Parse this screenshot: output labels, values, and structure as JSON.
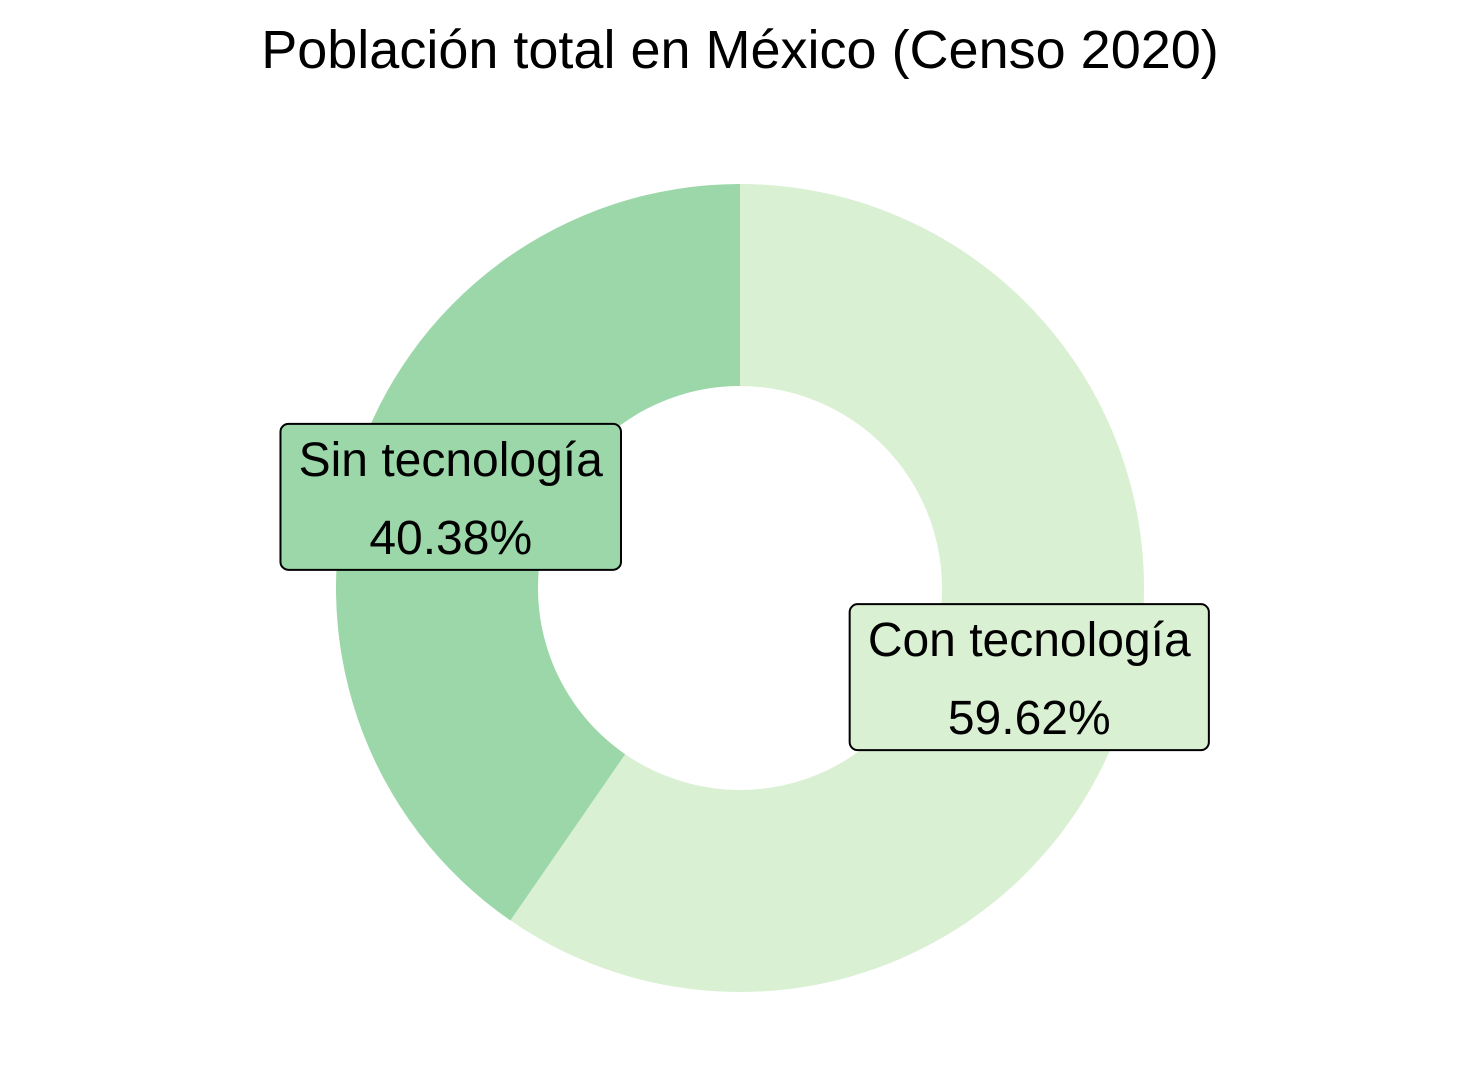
{
  "chart_data": {
    "type": "pie",
    "variant": "donut",
    "title": "Población total en México (Censo 2020)",
    "slices": [
      {
        "label": "Con tecnología",
        "value": 59.62,
        "value_label": "59.62%",
        "color": "#d9f0d3"
      },
      {
        "label": "Sin tecnología",
        "value": 40.38,
        "value_label": "40.38%",
        "color": "#9bd7a8"
      }
    ],
    "start": "top",
    "direction": "clockwise",
    "label_box_border_color": "#000000",
    "legend": "none"
  }
}
